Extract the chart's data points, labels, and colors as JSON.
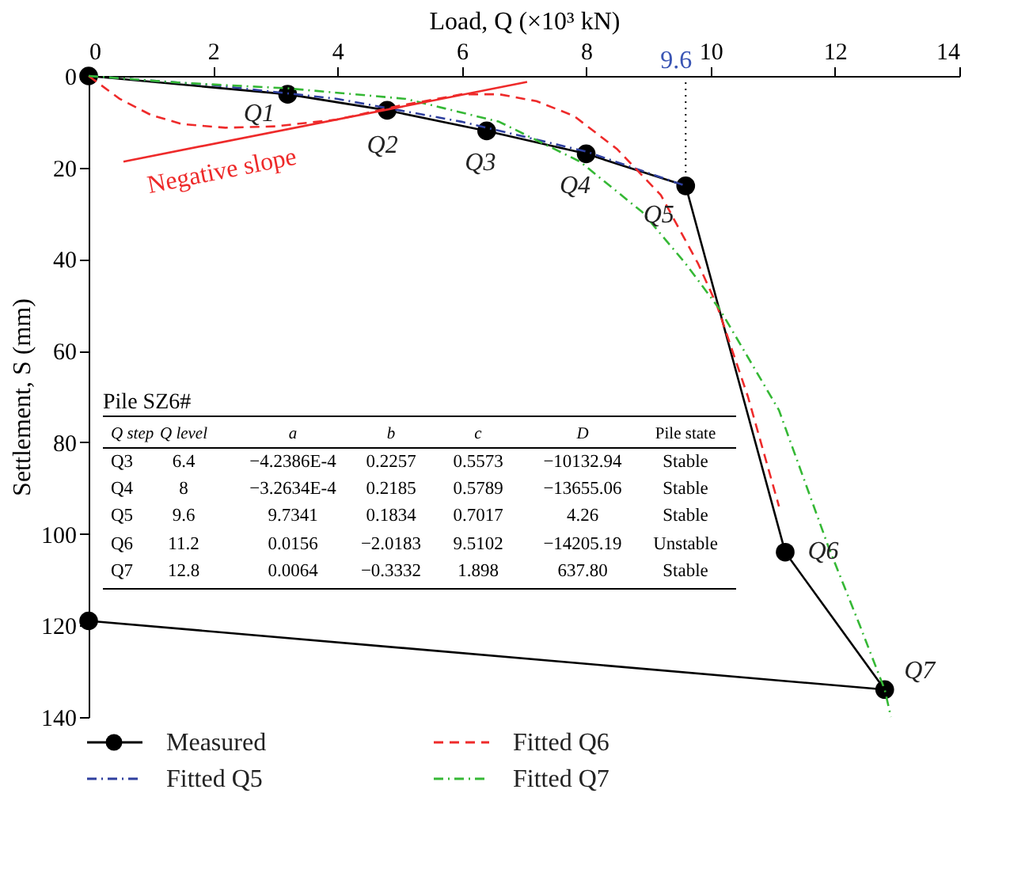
{
  "chart_data": {
    "type": "line",
    "xlabel": "Load, Q (×10³ kN)",
    "ylabel": "Settlement, S (mm)",
    "xlim": [
      0,
      14
    ],
    "ylim": [
      140,
      0
    ],
    "xticks": [
      0,
      2,
      4,
      6,
      8,
      10,
      12,
      14
    ],
    "yticks": [
      0,
      20,
      40,
      60,
      80,
      100,
      120,
      140
    ],
    "grid": false,
    "legend": "bottom",
    "series": [
      {
        "name": "Measured",
        "color": "#000000",
        "marker": "circle",
        "x": [
          0,
          3.2,
          4.8,
          6.4,
          8,
          9.6,
          11.2,
          12.8,
          0
        ],
        "values": [
          0,
          4,
          7.5,
          12,
          17,
          24,
          104,
          134,
          119
        ]
      },
      {
        "name": "Fitted Q5",
        "color": "#2e3f9e",
        "line_style": "dashdot",
        "x": [
          0,
          2,
          4,
          6,
          8,
          9.6
        ],
        "values": [
          0,
          2,
          5,
          10,
          16.5,
          24
        ]
      },
      {
        "name": "Fitted Q6",
        "color": "#ee2a2a",
        "line_style": "dashed",
        "x": [
          0,
          0.5,
          1,
          1.5,
          2.2,
          3,
          4,
          5,
          6,
          6.6,
          7.2,
          7.8,
          8.5,
          9.2,
          9.8,
          10.1,
          10.6,
          11.1
        ],
        "values": [
          0,
          5,
          8.5,
          10.5,
          11.3,
          11,
          9.5,
          6.5,
          4,
          4,
          5.5,
          8.7,
          16,
          26,
          41,
          50,
          70,
          94
        ]
      },
      {
        "name": "Fitted Q7",
        "color": "#35b835",
        "line_style": "dashdot",
        "x": [
          0,
          1.5,
          3.2,
          5.1,
          6.6,
          7.9,
          8.9,
          9.6,
          10.15,
          11.1,
          11.9,
          12.4,
          12.8,
          12.9
        ],
        "values": [
          0,
          1.5,
          2.7,
          5,
          10,
          18.7,
          29.7,
          41,
          51,
          73,
          103,
          120,
          134,
          140
        ]
      },
      {
        "name": "Negative slope",
        "color": "#ee2a2a",
        "x": [
          0.56,
          7.05
        ],
        "values": [
          18.7,
          1.3
        ]
      }
    ],
    "ref_lines": [
      {
        "axis": "x",
        "value": 9.6,
        "label": "9.6",
        "color": "#000000",
        "line_style": "dotted"
      }
    ],
    "annotations": [
      "Q1",
      "Q2",
      "Q3",
      "Q4",
      "Q5",
      "Q6",
      "Q7",
      "Pile SZ6#",
      "Q step",
      "Q level",
      "a",
      "b",
      "c",
      "D",
      "Pile state",
      "Q3",
      "6.4",
      "−4.2386E-4",
      "0.2257",
      "0.5573",
      "−10132.94",
      "Stable",
      "Q4",
      "8",
      "−3.2634E-4",
      "0.2185",
      "0.5789",
      "−13655.06",
      "Stable",
      "Q5",
      "9.6",
      "9.7341",
      "0.1834",
      "0.7017",
      "4.26",
      "Stable",
      "Q6",
      "11.2",
      "0.0156",
      "−2.0183",
      "9.5102",
      "−14205.19",
      "Unstable",
      "Q7",
      "12.8",
      "0.0064",
      "−0.3332",
      "1.898",
      "637.80",
      "Stable"
    ]
  }
}
